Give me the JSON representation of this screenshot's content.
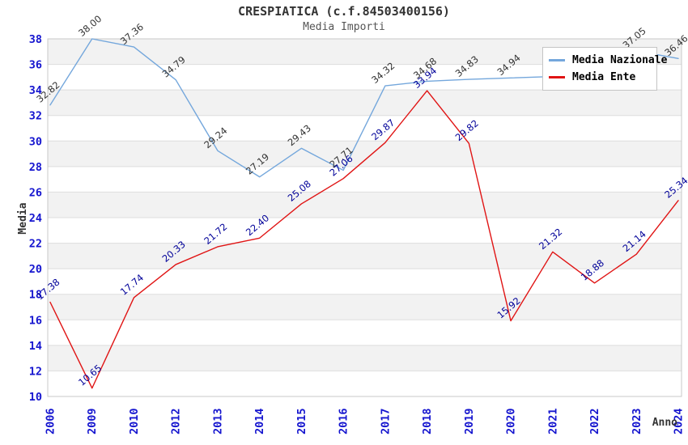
{
  "chart_data": {
    "type": "line",
    "title": "CRESPIATICA (c.f.84503400156)",
    "subtitle": "Media Importi",
    "xlabel": "Anno",
    "ylabel": "Media",
    "ylim": [
      10,
      38
    ],
    "ytick_step": 2,
    "grid": "horizontal-bands",
    "legend_position": "top-right-inside",
    "categories": [
      "2006",
      "2009",
      "2010",
      "2012",
      "2013",
      "2014",
      "2015",
      "2016",
      "2017",
      "2018",
      "2019",
      "2020",
      "2021",
      "2022",
      "2023",
      "2024"
    ],
    "series": [
      {
        "name": "Media Nazionale",
        "color": "#74a7dc",
        "label_color": "#333333",
        "values": [
          32.82,
          38.0,
          37.36,
          34.79,
          29.24,
          27.19,
          29.43,
          27.71,
          34.32,
          34.68,
          34.83,
          34.94,
          35.05,
          36.0,
          37.05,
          36.46
        ],
        "labels": [
          "32.82",
          "38.00",
          "37.36",
          "34.79",
          "29.24",
          "27.19",
          "29.43",
          "27.71",
          "34.32",
          "34.68",
          "34.83",
          "34.94",
          "",
          "",
          "37.05",
          "36.46"
        ]
      },
      {
        "name": "Media Ente",
        "color": "#e01414",
        "label_color": "#000099",
        "values": [
          17.38,
          10.65,
          17.74,
          20.33,
          21.72,
          22.4,
          25.08,
          27.06,
          29.87,
          33.94,
          29.82,
          15.92,
          21.32,
          18.88,
          21.14,
          25.34
        ],
        "labels": [
          "17.38",
          "10.65",
          "17.74",
          "20.33",
          "21.72",
          "22.40",
          "25.08",
          "27.06",
          "29.87",
          "33.94",
          "29.82",
          "15.92",
          "21.32",
          "18.88",
          "21.14",
          "25.34"
        ]
      }
    ],
    "colors": {
      "axis_tick_label": "#1515cf",
      "band": "#f2f2f2",
      "gridline": "#dddddd",
      "plot_border": "#c8c8c8"
    }
  }
}
